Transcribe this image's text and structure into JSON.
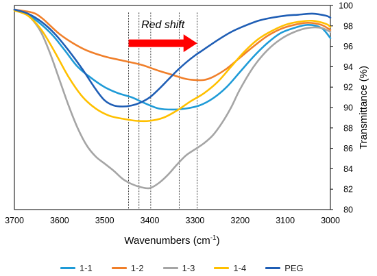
{
  "chart_data": {
    "type": "line",
    "xlabel_main": "Wavenumbers (cm",
    "xlabel_sup": "-1",
    "xlabel_end": ")",
    "ylabel": "Transmittance (%)",
    "xlim": [
      3700,
      3000
    ],
    "ylim": [
      80,
      100
    ],
    "x_ticks": [
      3700,
      3600,
      3500,
      3400,
      3300,
      3200,
      3100,
      3000
    ],
    "y_ticks": [
      80,
      82,
      84,
      86,
      88,
      90,
      92,
      94,
      96,
      98,
      100
    ],
    "y_axis_side": "right",
    "grid": false,
    "legend_position": "bottom",
    "annotation": {
      "text": "Red shift",
      "arrow_from_x": 3447,
      "arrow_to_x": 3295,
      "arrow_y": 96.3,
      "color": "#ff0000"
    },
    "reference_lines_x": [
      3447,
      3424,
      3398,
      3335,
      3295
    ],
    "series": [
      {
        "name": "1-1",
        "color": "#1f9bd7",
        "x": [
          3700,
          3660,
          3620,
          3590,
          3560,
          3530,
          3500,
          3470,
          3440,
          3410,
          3380,
          3350,
          3320,
          3290,
          3260,
          3230,
          3200,
          3170,
          3140,
          3110,
          3080,
          3050,
          3020,
          3000
        ],
        "y": [
          99.6,
          98.8,
          97.3,
          95.7,
          94.0,
          92.9,
          92.0,
          91.4,
          91.0,
          90.4,
          89.9,
          89.8,
          89.9,
          90.2,
          90.9,
          92.0,
          93.5,
          95.0,
          96.3,
          97.3,
          97.8,
          98.1,
          97.8,
          96.8
        ]
      },
      {
        "name": "1-2",
        "color": "#f07f2a",
        "x": [
          3700,
          3660,
          3640,
          3620,
          3600,
          3570,
          3540,
          3500,
          3460,
          3420,
          3380,
          3350,
          3320,
          3300,
          3280,
          3260,
          3230,
          3200,
          3170,
          3140,
          3110,
          3080,
          3050,
          3020,
          3000
        ],
        "y": [
          99.6,
          99.3,
          98.8,
          98.0,
          97.2,
          96.3,
          95.6,
          95.0,
          94.6,
          94.2,
          93.6,
          93.2,
          92.8,
          92.7,
          92.7,
          93.0,
          93.8,
          94.9,
          96.0,
          97.0,
          97.7,
          98.1,
          98.3,
          98.1,
          97.6
        ]
      },
      {
        "name": "1-3",
        "color": "#a5a5a5",
        "x": [
          3700,
          3680,
          3660,
          3640,
          3620,
          3600,
          3580,
          3560,
          3540,
          3520,
          3500,
          3480,
          3460,
          3440,
          3420,
          3400,
          3380,
          3360,
          3340,
          3320,
          3300,
          3280,
          3260,
          3240,
          3220,
          3200,
          3170,
          3140,
          3110,
          3080,
          3050,
          3020,
          3000
        ],
        "y": [
          99.6,
          99.3,
          98.6,
          97.3,
          95.2,
          92.7,
          90.2,
          88.0,
          86.3,
          85.2,
          84.5,
          83.8,
          83.0,
          82.5,
          82.2,
          82.1,
          82.6,
          83.4,
          84.4,
          85.3,
          85.9,
          86.5,
          87.3,
          88.5,
          90.0,
          91.8,
          94.0,
          95.6,
          96.7,
          97.4,
          97.8,
          97.8,
          97.4
        ]
      },
      {
        "name": "1-4",
        "color": "#ffc000",
        "x": [
          3700,
          3670,
          3640,
          3610,
          3580,
          3550,
          3520,
          3490,
          3460,
          3430,
          3400,
          3370,
          3340,
          3310,
          3280,
          3250,
          3220,
          3190,
          3160,
          3130,
          3100,
          3070,
          3040,
          3010,
          3000
        ],
        "y": [
          99.5,
          99.0,
          97.6,
          95.4,
          93.0,
          91.1,
          89.9,
          89.2,
          88.9,
          88.7,
          88.7,
          89.0,
          89.7,
          90.6,
          91.4,
          92.5,
          94.0,
          95.5,
          96.7,
          97.5,
          98.1,
          98.4,
          98.5,
          98.2,
          97.9
        ]
      },
      {
        "name": "PEG",
        "color": "#1f5eb5",
        "x": [
          3700,
          3670,
          3640,
          3610,
          3580,
          3550,
          3520,
          3500,
          3480,
          3460,
          3440,
          3420,
          3400,
          3380,
          3360,
          3340,
          3320,
          3300,
          3280,
          3250,
          3220,
          3190,
          3160,
          3130,
          3100,
          3070,
          3040,
          3010,
          3000
        ],
        "y": [
          99.6,
          99.2,
          98.4,
          97.2,
          95.6,
          93.8,
          91.8,
          90.7,
          90.2,
          90.1,
          90.2,
          90.5,
          91.0,
          91.8,
          92.7,
          93.6,
          94.4,
          95.1,
          95.7,
          96.6,
          97.4,
          98.0,
          98.5,
          98.8,
          99.0,
          99.1,
          99.2,
          99.0,
          98.8
        ]
      }
    ]
  }
}
